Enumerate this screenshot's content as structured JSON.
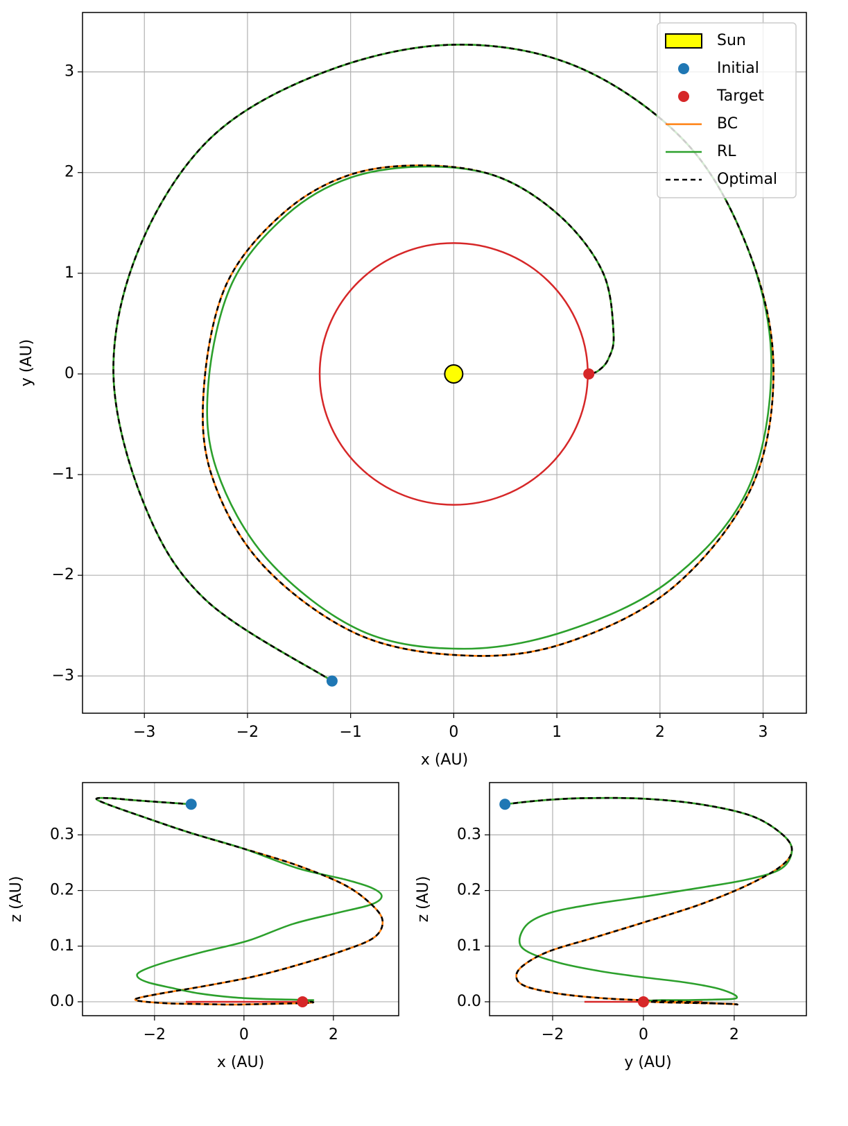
{
  "chart_data": [
    {
      "type": "line",
      "xlabel": "x (AU)",
      "ylabel": "y (AU)",
      "xlim": [
        -3.6,
        3.42
      ],
      "ylim": [
        -3.37,
        3.59
      ],
      "xticks": [
        {
          "value": -3,
          "label": "−3"
        },
        {
          "value": -2,
          "label": "−2"
        },
        {
          "value": -1,
          "label": "−1"
        },
        0,
        1,
        2,
        3
      ],
      "yticks": [
        {
          "value": -3,
          "label": "−3"
        },
        {
          "value": -2,
          "label": "−2"
        },
        {
          "value": -1,
          "label": "−1"
        },
        0,
        1,
        2,
        3
      ],
      "grid": true,
      "legend": "upper right",
      "target_orbit": {
        "radius": 1.3,
        "color": "#d62728"
      },
      "sun": {
        "name": "Sun",
        "x": 0,
        "y": 0,
        "color": "#ffff00"
      },
      "points": [
        {
          "name": "Initial",
          "color": "#1f77b4",
          "x": -1.18,
          "y": -3.05
        },
        {
          "name": "Target",
          "color": "#d62728",
          "x": 1.31,
          "y": 0
        }
      ],
      "series": [
        {
          "name": "BC",
          "color": "#ff7f0e",
          "dashed": false,
          "x": [
            -1.18,
            -2.4,
            -3.0,
            -3.3,
            -3.05,
            -2.35,
            -1.25,
            0,
            1.2,
            2.25,
            2.85,
            3.1,
            2.9,
            2.15,
            1.15,
            0.2,
            -0.9,
            -1.85,
            -2.35,
            -2.42,
            -2.2,
            -1.65,
            -1.0,
            -0.25,
            0.45,
            1.05,
            1.45,
            1.55,
            1.5,
            1.4,
            1.31
          ],
          "y": [
            -3.05,
            -2.25,
            -1.3,
            0,
            1.25,
            2.35,
            3.0,
            3.27,
            3.05,
            2.3,
            1.25,
            0.1,
            -1.1,
            -2.1,
            -2.65,
            -2.8,
            -2.6,
            -1.9,
            -1.0,
            -0.1,
            0.9,
            1.6,
            1.98,
            2.07,
            1.95,
            1.55,
            1.0,
            0.4,
            0.15,
            0.03,
            0
          ]
        },
        {
          "name": "RL",
          "color": "#2ca02c",
          "dashed": false,
          "x": [
            -1.18,
            -2.4,
            -3.0,
            -3.3,
            -3.05,
            -2.35,
            -1.25,
            0,
            1.2,
            2.25,
            2.85,
            3.08,
            2.85,
            2.1,
            1.1,
            0.1,
            -0.9,
            -1.8,
            -2.3,
            -2.38,
            -2.15,
            -1.62,
            -1.0,
            -0.25,
            0.45,
            1.05,
            1.45,
            1.55,
            1.5,
            1.4,
            1.31
          ],
          "y": [
            -3.05,
            -2.25,
            -1.3,
            0,
            1.25,
            2.35,
            3.0,
            3.27,
            3.05,
            2.3,
            1.25,
            0.1,
            -1.15,
            -2.05,
            -2.55,
            -2.73,
            -2.55,
            -1.85,
            -0.95,
            -0.1,
            0.9,
            1.58,
            1.95,
            2.06,
            1.95,
            1.55,
            1.0,
            0.4,
            0.15,
            0.03,
            0
          ]
        },
        {
          "name": "Optimal",
          "color": "#000000",
          "dashed": true,
          "x": [
            -1.18,
            -2.4,
            -3.0,
            -3.3,
            -3.05,
            -2.35,
            -1.25,
            0,
            1.2,
            2.25,
            2.85,
            3.1,
            2.9,
            2.15,
            1.15,
            0.2,
            -0.9,
            -1.85,
            -2.35,
            -2.42,
            -2.2,
            -1.65,
            -1.0,
            -0.25,
            0.45,
            1.05,
            1.45,
            1.55,
            1.5,
            1.4,
            1.31
          ],
          "y": [
            -3.05,
            -2.25,
            -1.3,
            0,
            1.25,
            2.35,
            3.0,
            3.27,
            3.05,
            2.3,
            1.25,
            0.1,
            -1.1,
            -2.1,
            -2.65,
            -2.8,
            -2.6,
            -1.9,
            -1.0,
            -0.1,
            0.9,
            1.6,
            1.98,
            2.07,
            1.95,
            1.55,
            1.0,
            0.4,
            0.15,
            0.03,
            0
          ]
        }
      ]
    },
    {
      "type": "line",
      "xlabel": "x (AU)",
      "ylabel": "z (AU)",
      "xlim": [
        -3.61,
        3.46
      ],
      "ylim": [
        -0.025,
        0.394
      ],
      "xticks": [
        {
          "value": -2,
          "label": "−2"
        },
        0,
        2
      ],
      "yticks": [
        {
          "value": 0,
          "label": "0.0"
        },
        0.1,
        0.2,
        0.3
      ],
      "grid": true,
      "target_orbit": {
        "radius": 1.3,
        "color": "#d62728"
      },
      "points": [
        {
          "color": "#1f77b4",
          "x": -1.18,
          "y": 0.355
        },
        {
          "color": "#d62728",
          "x": 1.31,
          "y": 0
        }
      ],
      "series": [
        {
          "color": "#ff7f0e",
          "dashed": false,
          "x": [
            -1.18,
            -2.4,
            -3.0,
            -3.3,
            -3.05,
            -2.35,
            -1.25,
            0,
            1.2,
            2.25,
            2.85,
            3.1,
            2.9,
            2.15,
            1.15,
            0.2,
            -0.9,
            -1.85,
            -2.35,
            -2.42,
            -2.2,
            -1.65,
            -1.0,
            -0.25,
            0.45,
            1.05,
            1.45,
            1.55,
            1.5,
            1.4,
            1.31
          ],
          "y": [
            0.355,
            0.362,
            0.366,
            0.365,
            0.355,
            0.335,
            0.305,
            0.275,
            0.245,
            0.21,
            0.175,
            0.145,
            0.115,
            0.09,
            0.065,
            0.045,
            0.028,
            0.015,
            0.007,
            0.003,
            0,
            -0.003,
            -0.004,
            -0.005,
            -0.004,
            -0.003,
            -0.002,
            -0.001,
            0,
            0,
            0
          ]
        },
        {
          "color": "#2ca02c",
          "dashed": false,
          "x": [
            -1.18,
            -2.4,
            -3.0,
            -3.3,
            -3.05,
            -2.35,
            -1.25,
            0,
            1.2,
            2.25,
            2.85,
            3.08,
            2.85,
            2.1,
            1.1,
            0.1,
            -0.9,
            -1.8,
            -2.3,
            -2.38,
            -2.15,
            -1.62,
            -1.0,
            -0.25,
            0.45,
            1.05,
            1.45,
            1.55,
            1.5,
            1.4,
            1.31
          ],
          "y": [
            0.355,
            0.362,
            0.366,
            0.365,
            0.355,
            0.335,
            0.305,
            0.275,
            0.24,
            0.22,
            0.205,
            0.19,
            0.175,
            0.16,
            0.14,
            0.11,
            0.09,
            0.07,
            0.055,
            0.045,
            0.035,
            0.025,
            0.015,
            0.008,
            0.005,
            0.004,
            0.003,
            0.003,
            0.002,
            0.001,
            0
          ]
        },
        {
          "color": "#000000",
          "dashed": true,
          "x": [
            -1.18,
            -2.4,
            -3.0,
            -3.3,
            -3.05,
            -2.35,
            -1.25,
            0,
            1.2,
            2.25,
            2.85,
            3.1,
            2.9,
            2.15,
            1.15,
            0.2,
            -0.9,
            -1.85,
            -2.35,
            -2.42,
            -2.2,
            -1.65,
            -1.0,
            -0.25,
            0.45,
            1.05,
            1.45,
            1.55,
            1.5,
            1.4,
            1.31
          ],
          "y": [
            0.355,
            0.362,
            0.366,
            0.365,
            0.355,
            0.335,
            0.305,
            0.275,
            0.245,
            0.21,
            0.175,
            0.145,
            0.115,
            0.09,
            0.065,
            0.045,
            0.028,
            0.015,
            0.007,
            0.003,
            0,
            -0.003,
            -0.004,
            -0.005,
            -0.004,
            -0.003,
            -0.002,
            -0.001,
            0,
            0,
            0
          ]
        }
      ]
    },
    {
      "type": "line",
      "xlabel": "y (AU)",
      "ylabel": "z (AU)",
      "xlim": [
        -3.39,
        3.59
      ],
      "ylim": [
        -0.025,
        0.394
      ],
      "xticks": [
        {
          "value": -2,
          "label": "−2"
        },
        0,
        2
      ],
      "yticks": [
        {
          "value": 0,
          "label": "0.0"
        },
        0.1,
        0.2,
        0.3
      ],
      "grid": true,
      "target_orbit": {
        "radius": 1.3,
        "color": "#d62728"
      },
      "points": [
        {
          "color": "#1f77b4",
          "x": -3.05,
          "y": 0.355
        },
        {
          "color": "#d62728",
          "x": 0,
          "y": 0
        }
      ],
      "series": [
        {
          "color": "#ff7f0e",
          "dashed": false,
          "x": [
            -3.05,
            -2.25,
            -1.3,
            0,
            1.25,
            2.35,
            3.0,
            3.27,
            3.05,
            2.3,
            1.25,
            0.1,
            -1.1,
            -2.1,
            -2.65,
            -2.8,
            -2.6,
            -1.9,
            -1.0,
            -0.1,
            0.9,
            1.6,
            1.98,
            2.07,
            1.95,
            1.55,
            1.0,
            0.4,
            0.15,
            0.03,
            0
          ],
          "y": [
            0.355,
            0.362,
            0.366,
            0.365,
            0.355,
            0.335,
            0.305,
            0.275,
            0.245,
            0.21,
            0.175,
            0.145,
            0.115,
            0.09,
            0.065,
            0.045,
            0.028,
            0.015,
            0.007,
            0.003,
            0,
            -0.003,
            -0.004,
            -0.005,
            -0.004,
            -0.003,
            -0.002,
            -0.001,
            0,
            0,
            0
          ]
        },
        {
          "color": "#2ca02c",
          "dashed": false,
          "x": [
            -3.05,
            -2.25,
            -1.3,
            0,
            1.25,
            2.35,
            3.0,
            3.27,
            3.05,
            2.3,
            1.25,
            0.1,
            -1.15,
            -2.05,
            -2.55,
            -2.73,
            -2.55,
            -1.85,
            -0.95,
            -0.1,
            0.9,
            1.58,
            1.95,
            2.06,
            1.95,
            1.55,
            1.0,
            0.4,
            0.15,
            0.03,
            0
          ],
          "y": [
            0.355,
            0.362,
            0.366,
            0.365,
            0.355,
            0.335,
            0.305,
            0.275,
            0.24,
            0.22,
            0.205,
            0.19,
            0.175,
            0.16,
            0.14,
            0.11,
            0.09,
            0.07,
            0.055,
            0.045,
            0.035,
            0.025,
            0.015,
            0.008,
            0.005,
            0.004,
            0.003,
            0.003,
            0.002,
            0.001,
            0
          ]
        },
        {
          "color": "#000000",
          "dashed": true,
          "x": [
            -3.05,
            -2.25,
            -1.3,
            0,
            1.25,
            2.35,
            3.0,
            3.27,
            3.05,
            2.3,
            1.25,
            0.1,
            -1.1,
            -2.1,
            -2.65,
            -2.8,
            -2.6,
            -1.9,
            -1.0,
            -0.1,
            0.9,
            1.6,
            1.98,
            2.07,
            1.95,
            1.55,
            1.0,
            0.4,
            0.15,
            0.03,
            0
          ],
          "y": [
            0.355,
            0.362,
            0.366,
            0.365,
            0.355,
            0.335,
            0.305,
            0.275,
            0.245,
            0.21,
            0.175,
            0.145,
            0.115,
            0.09,
            0.065,
            0.045,
            0.028,
            0.015,
            0.007,
            0.003,
            0,
            -0.003,
            -0.004,
            -0.005,
            -0.004,
            -0.003,
            -0.002,
            -0.001,
            0,
            0,
            0
          ]
        }
      ]
    }
  ]
}
